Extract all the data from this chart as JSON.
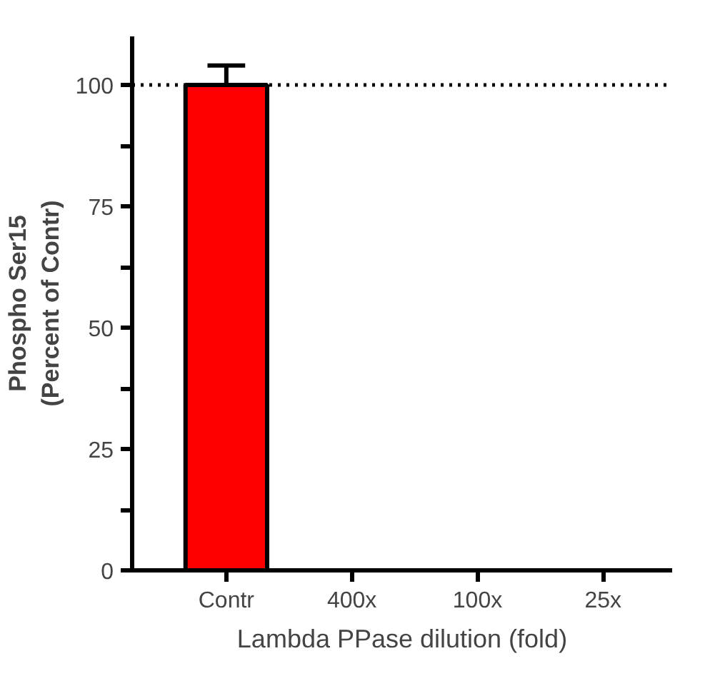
{
  "chart_data": {
    "type": "bar",
    "xlabel": "Lambda PPase dilution (fold)",
    "ylabel": "Phospho Ser15\n(Percent of Contr)",
    "categories": [
      "Contr",
      "400x",
      "100x",
      "25x"
    ],
    "values": [
      100,
      0,
      0,
      0
    ],
    "errors": [
      [
        100,
        104
      ],
      null,
      null,
      null
    ],
    "color": "#ff0000",
    "ylim": [
      0,
      110
    ],
    "yticks": [
      0,
      {
        "value": 12.5,
        "label": null
      },
      25,
      {
        "value": 37.5,
        "label": null
      },
      50,
      {
        "value": 62.5,
        "label": null
      },
      75,
      {
        "value": 87.5,
        "label": null
      },
      100
    ],
    "ref_lines": [
      {
        "axis": "y",
        "value": 100,
        "line_style": "dotted",
        "color": "#000000"
      }
    ],
    "grid": false
  }
}
